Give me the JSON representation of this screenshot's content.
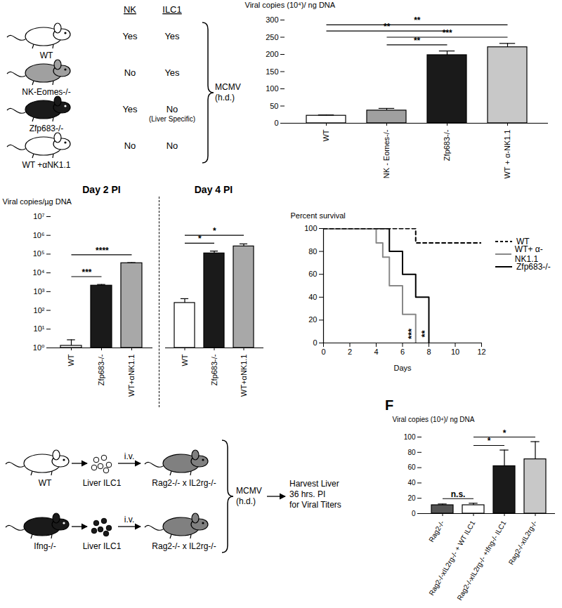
{
  "chart_data": [
    {
      "type": "bar",
      "categories": [
        "WT",
        "NK - Eomes-/-",
        "Zfp683-/-",
        "WT + α-NK1.1"
      ],
      "values": [
        22,
        37,
        198,
        221
      ],
      "errors": [
        2,
        6,
        12,
        11
      ],
      "colors": [
        "#ffffff",
        "#a0a0a0",
        "#1a1a1a",
        "#c8c8c8"
      ],
      "ylabel": "Viral copies (10⁴)/ ng DNA",
      "ylim": [
        0,
        300
      ],
      "yticks": [
        0,
        50,
        100,
        150,
        200,
        250,
        300
      ],
      "annotations": [
        {
          "from": "NK - Eomes-/-",
          "to": "Zfp683-/-",
          "text": "**"
        },
        {
          "from": "NK - Eomes-/-",
          "to": "WT + α-NK1.1",
          "text": "***"
        },
        {
          "from": "WT",
          "to": "Zfp683-/-",
          "text": "**"
        },
        {
          "from": "WT",
          "to": "WT + α-NK1.1",
          "text": "**"
        }
      ]
    },
    {
      "type": "bar",
      "log": "y",
      "ylabel": "Viral copies/µg DNA",
      "ylim": [
        1,
        10000000
      ],
      "yticks": [
        {
          "value": 1,
          "label": "10⁰"
        },
        {
          "value": 10,
          "label": "10¹"
        },
        {
          "value": 100,
          "label": "10²"
        },
        {
          "value": 1000,
          "label": "10³"
        },
        {
          "value": 10000,
          "label": "10⁴"
        },
        {
          "value": 100000,
          "label": "10⁵"
        },
        {
          "value": 1000000,
          "label": "10⁶"
        },
        {
          "value": 10000000,
          "label": "10⁷"
        }
      ],
      "panels": [
        {
          "title": "Day 2 PI",
          "categories": [
            "WT",
            "Zfp683-/-",
            "WT+αNK1.1"
          ],
          "values": [
            1.3,
            2100,
            33000
          ],
          "errors": [
            1.4,
            300,
            2000
          ],
          "colors": [
            "#ffffff",
            "#1a1a1a",
            "#a8a8a8"
          ],
          "annotations": [
            {
              "from": "WT",
              "to": "Zfp683-/-",
              "text": "***"
            },
            {
              "from": "WT",
              "to": "WT+αNK1.1",
              "text": "****"
            }
          ]
        },
        {
          "title": "Day 4 PI",
          "categories": [
            "WT",
            "Zfp683-/-",
            "WT+αNK1.1"
          ],
          "values": [
            250,
            110000,
            260000
          ],
          "errors": [
            170,
            35000,
            90000
          ],
          "colors": [
            "#ffffff",
            "#1a1a1a",
            "#a8a8a8"
          ],
          "annotations": [
            {
              "from": "WT",
              "to": "Zfp683-/-",
              "text": "*"
            },
            {
              "from": "WT",
              "to": "WT+αNK1.1",
              "text": "*"
            }
          ]
        }
      ]
    },
    {
      "type": "line",
      "xlabel": "Days",
      "ylabel": "Percent survival",
      "xlim": [
        0,
        12
      ],
      "xticks": [
        0,
        2,
        4,
        6,
        8,
        10,
        12
      ],
      "ylim": [
        0,
        100
      ],
      "yticks": [
        0,
        20,
        40,
        60,
        80,
        100
      ],
      "legend": "right",
      "series": [
        {
          "name": "WT",
          "color": "#000000",
          "line_style": "dashed",
          "x": [
            0,
            7,
            12
          ],
          "values": [
            100,
            87.5,
            87.5
          ]
        },
        {
          "name": "WT+ α-NK1.1",
          "color": "#888888",
          "line_style": "solid",
          "x": [
            0,
            4,
            4.5,
            5,
            6,
            7
          ],
          "values": [
            100,
            87.5,
            75,
            50,
            25,
            0
          ]
        },
        {
          "name": "Zfp683-/-",
          "color": "#000000",
          "line_style": "solid",
          "x": [
            0,
            5,
            6,
            7,
            8
          ],
          "values": [
            100,
            80,
            60,
            40,
            0
          ]
        }
      ],
      "annotations": [
        {
          "text": "***",
          "x": 6.7,
          "y": 8
        },
        {
          "text": "**",
          "x": 7.7,
          "y": 8
        }
      ]
    },
    {
      "type": "bar",
      "title": "F",
      "categories": [
        "Rag2-/-",
        "Rag2-/-xIL2rg-/- + WT ILC1",
        "Rag2-/-xIL2rg-/- +Ifng-/- ILC1",
        "Rag2-/-xIL2rg-/-"
      ],
      "values": [
        11,
        11,
        62,
        71
      ],
      "errors": [
        1.5,
        2.5,
        21,
        23
      ],
      "colors": [
        "#555555",
        "#ffffff",
        "#1a1a1a",
        "#c8c8c8"
      ],
      "ylabel": "Viral copies (10⁴)/ ng DNA",
      "ylim": [
        0,
        100
      ],
      "yticks": [
        0,
        20,
        40,
        60,
        80,
        100
      ],
      "annotations": [
        {
          "from": "Rag2-/-",
          "to": "Rag2-/-xIL2rg-/- + WT ILC1",
          "text": "n.s."
        },
        {
          "from": "Rag2-/-xIL2rg-/- + WT ILC1",
          "to": "Rag2-/-xIL2rg-/- +Ifng-/- ILC1",
          "text": "*"
        },
        {
          "from": "Rag2-/-xIL2rg-/- + WT ILC1",
          "to": "Rag2-/-xIL2rg-/-",
          "text": "*"
        }
      ]
    }
  ],
  "schematics": [
    {
      "header": [
        "NK",
        "ILC1"
      ],
      "rows": [
        {
          "label": "WT",
          "color": "#ffffff",
          "cells": [
            [
              "Yes"
            ],
            [
              "Yes"
            ]
          ]
        },
        {
          "label": "NK-Eomes-/-",
          "color": "#a0a0a0",
          "cells": [
            [
              "No"
            ],
            [
              "Yes"
            ]
          ]
        },
        {
          "label": "Zfp683-/-",
          "color": "#1a1a1a",
          "cells": [
            [
              "Yes"
            ],
            [
              "No",
              "(Liver Specific)"
            ]
          ]
        },
        {
          "label": "WT +αNK1.1",
          "color": "#ffffff",
          "cells": [
            [
              "No"
            ],
            [
              "No"
            ]
          ]
        }
      ],
      "treatment": [
        "MCMV",
        "(h.d.)"
      ]
    },
    {
      "rows": [
        {
          "donor": "WT",
          "donor_color": "#ffffff",
          "cells": "Liver ILC1",
          "cells_color": "#ffffff",
          "route": "i.v.",
          "recipient": "Rag2-/- x IL2rg-/-",
          "recipient_color": "#808080"
        },
        {
          "donor": "Ifng-/-",
          "donor_color": "#1a1a1a",
          "cells": "Liver ILC1",
          "cells_color": "#1a1a1a",
          "route": "i.v.",
          "recipient": "Rag2-/- x IL2rg-/-",
          "recipient_color": "#808080"
        }
      ],
      "treatment": [
        "MCMV",
        "(h.d.)"
      ],
      "readout": [
        "Harvest Liver",
        "36 hrs. PI",
        "for Viral Titers"
      ]
    }
  ]
}
